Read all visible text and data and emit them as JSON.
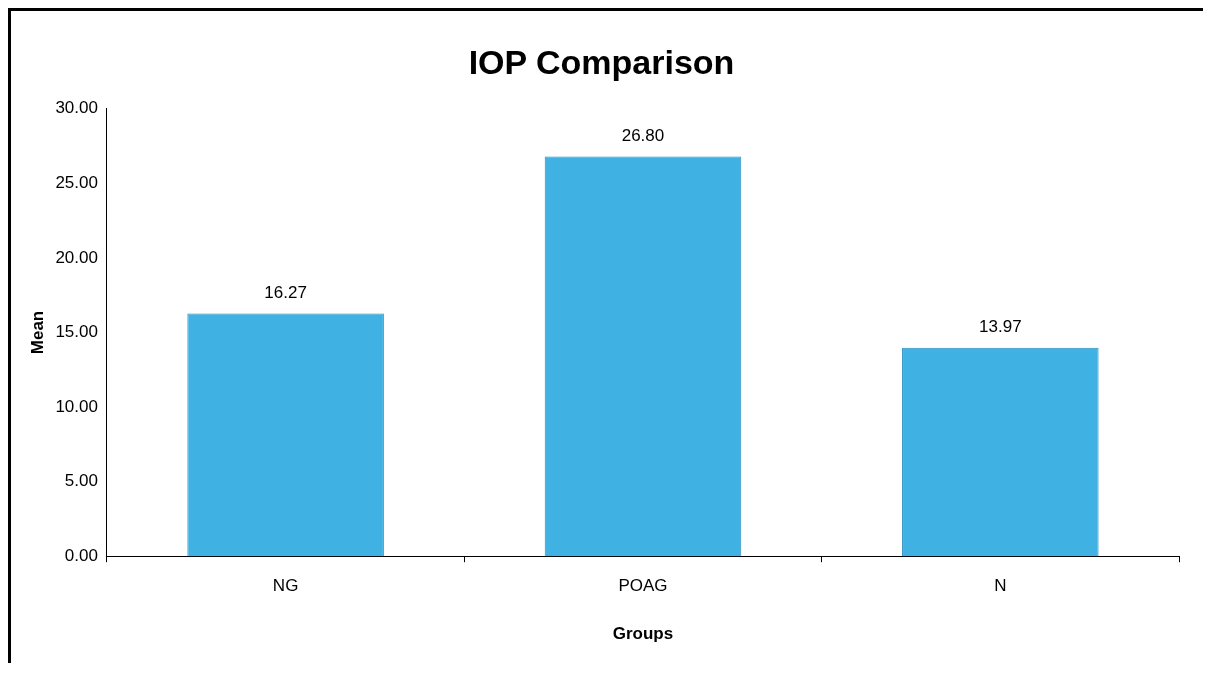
{
  "chart_data": {
    "type": "bar",
    "title": "IOP Comparison",
    "xlabel": "Groups",
    "ylabel": "Mean",
    "categories": [
      "NG",
      "POAG",
      "N"
    ],
    "values": [
      16.27,
      26.8,
      13.97
    ],
    "color": "#3fb1e3",
    "ylim": [
      0,
      30
    ],
    "yticks": [
      {
        "value": 0,
        "label": "0.00"
      },
      {
        "value": 5,
        "label": "5.00"
      },
      {
        "value": 10,
        "label": "10.00"
      },
      {
        "value": 15,
        "label": "15.00"
      },
      {
        "value": 20,
        "label": "20.00"
      },
      {
        "value": 25,
        "label": "25.00"
      },
      {
        "value": 30,
        "label": "30.00"
      }
    ],
    "value_labels": [
      "16.27",
      "26.80",
      "13.97"
    ],
    "grid": false,
    "legend": false
  }
}
